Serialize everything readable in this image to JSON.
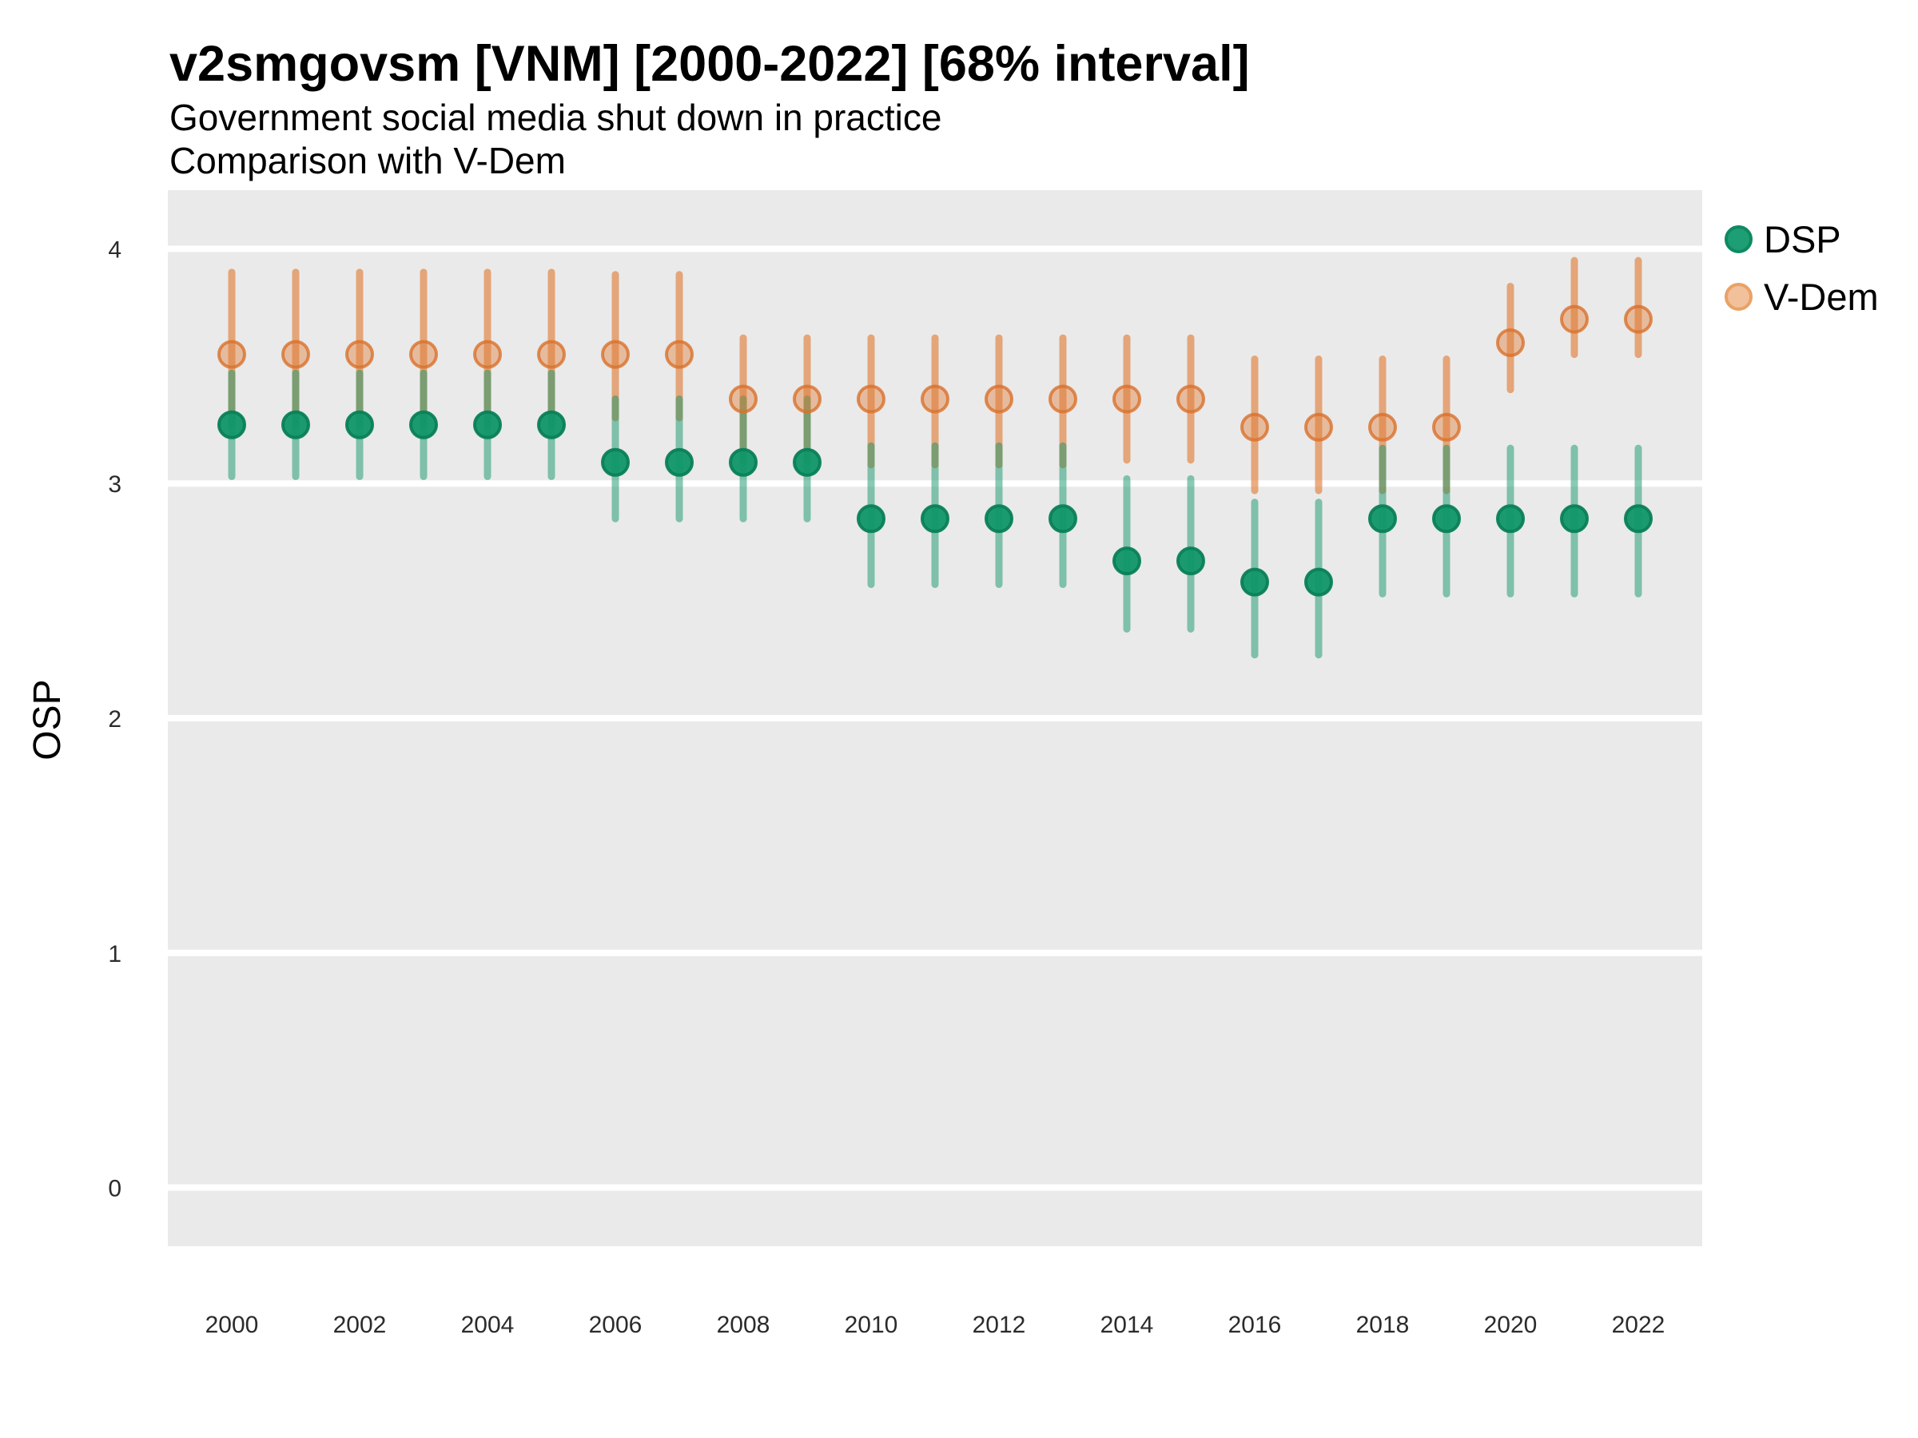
{
  "header": {
    "title": "v2smgovsm [VNM] [2000-2022] [68% interval]",
    "subtitle": "Government social media shut down in practice",
    "subtitle2": "Comparison with V-Dem"
  },
  "legend": {
    "items": [
      {
        "label": "DSP",
        "fill": "#1D9E73",
        "border": "#0E8A63"
      },
      {
        "label": "V-Dem",
        "fill": "#F2C09A",
        "border": "#E9A266"
      }
    ]
  },
  "chart_data": {
    "type": "pointrange",
    "title": "v2smgovsm [VNM] [2000-2022] [68% interval]",
    "subtitle": "Government social media shut down in practice",
    "comparison_note": "Comparison with V-Dem",
    "interval_level": "68%",
    "xlabel": "",
    "ylabel": "OSP",
    "x_range": [
      1999,
      2023
    ],
    "y_range": [
      -0.25,
      4.25
    ],
    "x_tick_labels": [
      "2000",
      "2002",
      "2004",
      "2006",
      "2008",
      "2010",
      "2012",
      "2014",
      "2016",
      "2018",
      "2020",
      "2022"
    ],
    "y_tick_labels": [
      "0",
      "1",
      "2",
      "3",
      "4"
    ],
    "grid": "major-y-only-white-on-gray",
    "legend_position": "right-top-outside",
    "panel_bg": "#EAEAEA",
    "gridline_color": "#FFFFFF",
    "years": [
      2000,
      2001,
      2002,
      2003,
      2004,
      2005,
      2006,
      2007,
      2008,
      2009,
      2010,
      2011,
      2012,
      2013,
      2014,
      2015,
      2016,
      2017,
      2018,
      2019,
      2020,
      2021,
      2022
    ],
    "series": [
      {
        "name": "DSP",
        "color": "#14966C",
        "est": [
          3.25,
          3.25,
          3.25,
          3.25,
          3.25,
          3.25,
          3.09,
          3.09,
          3.09,
          3.09,
          2.85,
          2.85,
          2.85,
          2.85,
          2.67,
          2.67,
          2.58,
          2.58,
          2.85,
          2.85,
          2.85,
          2.85,
          2.85
        ],
        "lo": [
          3.03,
          3.03,
          3.03,
          3.03,
          3.03,
          3.03,
          2.85,
          2.85,
          2.85,
          2.85,
          2.57,
          2.57,
          2.57,
          2.57,
          2.38,
          2.38,
          2.27,
          2.27,
          2.53,
          2.53,
          2.53,
          2.53,
          2.53
        ],
        "hi": [
          3.47,
          3.47,
          3.47,
          3.47,
          3.47,
          3.47,
          3.36,
          3.36,
          3.36,
          3.36,
          3.16,
          3.16,
          3.16,
          3.16,
          3.02,
          3.02,
          2.92,
          2.92,
          3.15,
          3.15,
          3.15,
          3.15,
          3.15
        ]
      },
      {
        "name": "V-Dem",
        "color": "#E07A33",
        "est": [
          3.55,
          3.55,
          3.55,
          3.55,
          3.55,
          3.55,
          3.55,
          3.55,
          3.36,
          3.36,
          3.36,
          3.36,
          3.36,
          3.36,
          3.36,
          3.36,
          3.24,
          3.24,
          3.24,
          3.24,
          3.6,
          3.7,
          3.7
        ],
        "lo": [
          3.25,
          3.25,
          3.25,
          3.25,
          3.25,
          3.25,
          3.28,
          3.28,
          3.1,
          3.1,
          3.08,
          3.08,
          3.08,
          3.08,
          3.1,
          3.1,
          2.97,
          2.97,
          2.97,
          2.97,
          3.4,
          3.55,
          3.55
        ],
        "hi": [
          3.9,
          3.9,
          3.9,
          3.9,
          3.9,
          3.9,
          3.89,
          3.89,
          3.62,
          3.62,
          3.62,
          3.62,
          3.62,
          3.62,
          3.62,
          3.62,
          3.53,
          3.53,
          3.53,
          3.53,
          3.84,
          3.95,
          3.95
        ]
      }
    ]
  }
}
